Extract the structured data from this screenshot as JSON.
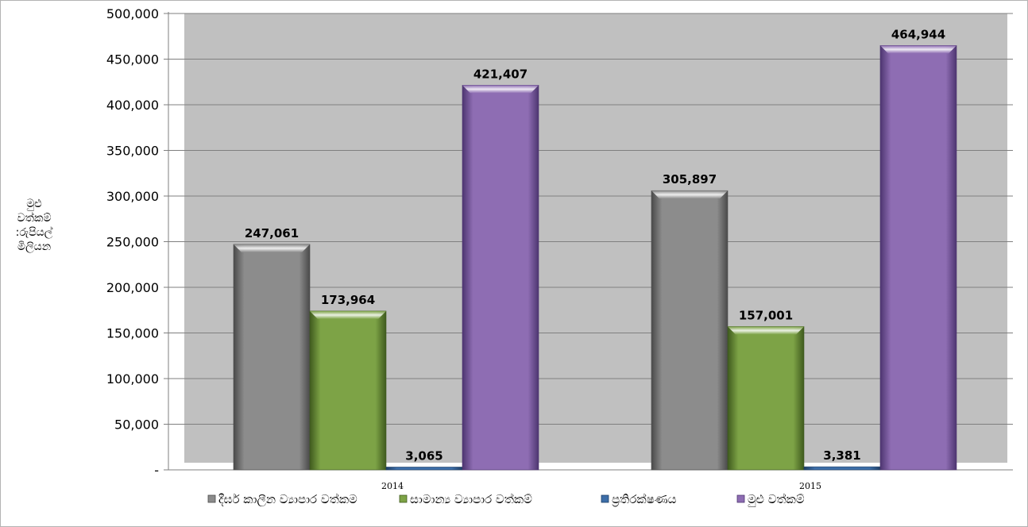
{
  "chart_data": {
    "type": "bar",
    "categories": [
      "2014",
      "2015"
    ],
    "series": [
      {
        "name": "දීර්ඝ කාලීන ව්‍යාපාර වත්කම",
        "values": [
          247061,
          305897
        ],
        "color": "#8c8c8c",
        "dark": "#4a4a4a"
      },
      {
        "name": "සාමාන්‍ය ව්‍යාපාර වත්කම්",
        "values": [
          173964,
          157001
        ],
        "color": "#7da346",
        "dark": "#3f5a1e"
      },
      {
        "name": "ප්‍රතිරක්ෂණය",
        "values": [
          3065,
          3381
        ],
        "color": "#3d6ea8",
        "dark": "#1f3f66"
      },
      {
        "name": "මුළු වත්කම්",
        "values": [
          421407,
          464944
        ],
        "color": "#8e6db3",
        "dark": "#4d3570"
      }
    ],
    "value_labels": [
      [
        "247,061",
        "305,897"
      ],
      [
        "173,964",
        "157,001"
      ],
      [
        "3,065",
        "3,381"
      ],
      [
        "421,407",
        "464,944"
      ]
    ],
    "y_ticks": [
      "-",
      "50,000",
      "100,000",
      "150,000",
      "200,000",
      "250,000",
      "300,000",
      "350,000",
      "400,000",
      "450,000",
      "500,000"
    ],
    "ylim": [
      0,
      500000
    ],
    "ylabel_lines": [
      "මුළු",
      "වත්කම්",
      ":රුපියල්",
      "මිලියන"
    ],
    "grid": true,
    "legend_position": "bottom",
    "plot_background": "#c0c0c0"
  }
}
